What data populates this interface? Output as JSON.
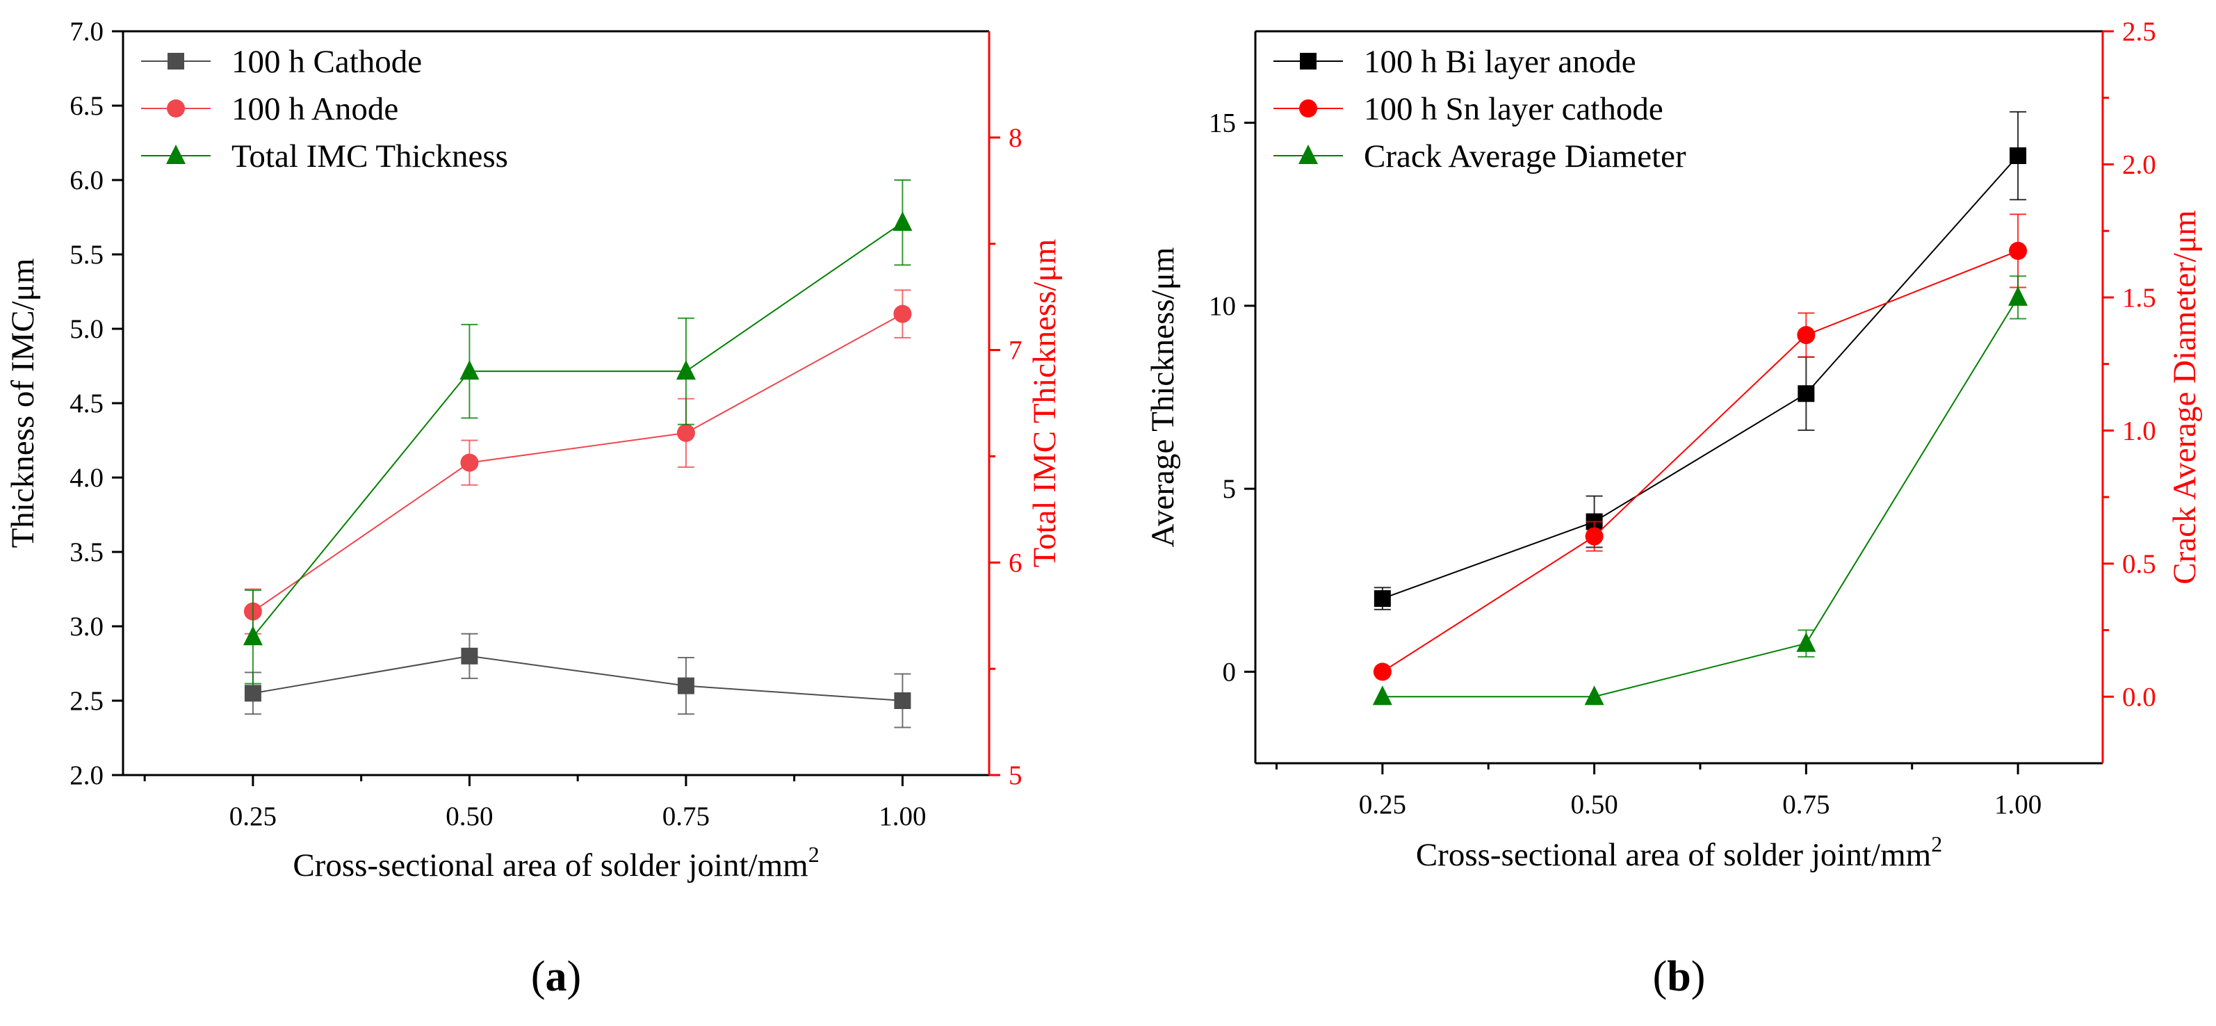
{
  "chart_data": [
    {
      "type": "line",
      "panel_label": "a",
      "xlabel": "Cross-sectional area of solder joint/mm",
      "xlabel_sup": "2",
      "ylabel": "Thickness of IMC/μm",
      "ylabel_right": "Total IMC Thickness/μm",
      "xlim": [
        0.1,
        1.1
      ],
      "ylim": [
        2.0,
        7.0
      ],
      "ylim_right": [
        5,
        8.5
      ],
      "x_ticks": [
        0.25,
        0.5,
        0.75,
        1.0
      ],
      "x_tick_labels": [
        "0.25",
        "0.50",
        "0.75",
        "1.00"
      ],
      "y_ticks": [
        2.0,
        2.5,
        3.0,
        3.5,
        4.0,
        4.5,
        5.0,
        5.5,
        6.0,
        6.5,
        7.0
      ],
      "y_tick_labels": [
        "2.0",
        "2.5",
        "3.0",
        "3.5",
        "4.0",
        "4.5",
        "5.0",
        "5.5",
        "6.0",
        "6.5",
        "7.0"
      ],
      "y_right_ticks": [
        5,
        6,
        7,
        8
      ],
      "y_right_tick_labels": [
        "5",
        "6",
        "7",
        "8"
      ],
      "legend_position": "top-left",
      "right_axis_color": "#ff0000",
      "series": [
        {
          "name": "100 h Cathode",
          "axis": "left",
          "marker": "square",
          "color": "#4d4d4d",
          "x": [
            0.25,
            0.5,
            0.75,
            1.0
          ],
          "values": [
            2.55,
            2.8,
            2.6,
            2.5
          ],
          "errors": [
            0.14,
            0.15,
            0.19,
            0.18
          ]
        },
        {
          "name": "100 h Anode",
          "axis": "left",
          "marker": "circle",
          "color": "#f0464d",
          "x": [
            0.25,
            0.5,
            0.75,
            1.0
          ],
          "values": [
            3.1,
            4.1,
            4.3,
            5.1
          ],
          "errors": [
            0.15,
            0.15,
            0.23,
            0.16
          ]
        },
        {
          "name": "Total IMC Thickness",
          "axis": "right",
          "marker": "triangle",
          "color": "#008000",
          "x": [
            0.25,
            0.5,
            0.75,
            1.0
          ],
          "values": [
            5.65,
            6.9,
            6.9,
            7.6
          ],
          "errors": [
            0.22,
            0.22,
            0.25,
            0.2
          ]
        }
      ]
    },
    {
      "type": "line",
      "panel_label": "b",
      "xlabel": "Cross-sectional area of solder joint/mm",
      "xlabel_sup": "2",
      "ylabel": "Average Thickness/μm",
      "ylabel_right": "Crack Average Diameter/μm",
      "xlim": [
        0.1,
        1.1
      ],
      "ylim": [
        -2.5,
        17.5
      ],
      "ylim_right": [
        -0.25,
        2.5
      ],
      "x_ticks": [
        0.25,
        0.5,
        0.75,
        1.0
      ],
      "x_tick_labels": [
        "0.25",
        "0.50",
        "0.75",
        "1.00"
      ],
      "y_ticks": [
        0,
        5,
        10,
        15
      ],
      "y_tick_labels": [
        "0",
        "5",
        "10",
        "15"
      ],
      "y_right_ticks": [
        0.0,
        0.5,
        1.0,
        1.5,
        2.0,
        2.5
      ],
      "y_right_tick_labels": [
        "0.0",
        "0.5",
        "1.0",
        "1.5",
        "2.0",
        "2.5"
      ],
      "legend_position": "top-left",
      "right_axis_color": "#ff0000",
      "series": [
        {
          "name": "100 h Bi layer anode",
          "axis": "left",
          "marker": "square",
          "color": "#000000",
          "x": [
            0.25,
            0.5,
            0.75,
            1.0
          ],
          "values": [
            2.0,
            4.1,
            7.6,
            14.1
          ],
          "errors": [
            0.3,
            0.7,
            1.0,
            1.2
          ]
        },
        {
          "name": "100 h Sn layer cathode",
          "axis": "left",
          "marker": "circle",
          "color": "#ff0000",
          "x": [
            0.25,
            0.5,
            0.75,
            1.0
          ],
          "values": [
            0.0,
            3.7,
            9.2,
            11.5
          ],
          "errors": [
            0.0,
            0.4,
            0.6,
            1.0
          ]
        },
        {
          "name": "Crack Average Diameter",
          "axis": "right",
          "marker": "triangle",
          "color": "#008000",
          "x": [
            0.25,
            0.5,
            0.75,
            1.0
          ],
          "values": [
            0.0,
            0.0,
            0.2,
            1.5
          ],
          "errors": [
            0.0,
            0.0,
            0.05,
            0.08
          ]
        }
      ]
    }
  ]
}
